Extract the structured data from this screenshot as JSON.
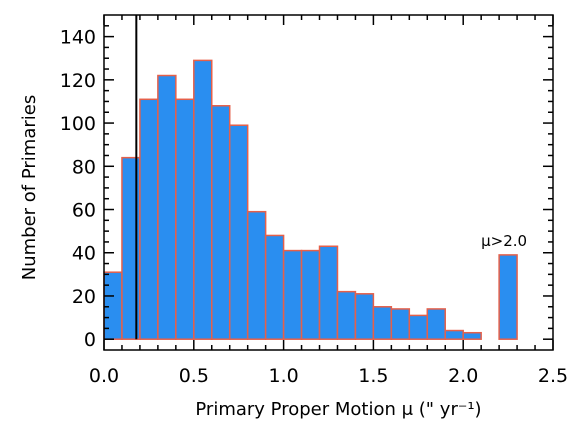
{
  "chart_data": {
    "type": "bar",
    "bin_width": 0.1,
    "bin_starts": [
      0.0,
      0.1,
      0.2,
      0.3,
      0.4,
      0.5,
      0.6,
      0.7,
      0.8,
      0.9,
      1.0,
      1.1,
      1.2,
      1.3,
      1.4,
      1.5,
      1.6,
      1.7,
      1.8,
      1.9,
      2.0,
      2.1
    ],
    "values": [
      31,
      84,
      111,
      122,
      111,
      129,
      108,
      99,
      59,
      48,
      41,
      41,
      43,
      22,
      21,
      15,
      14,
      11,
      14,
      4,
      3,
      0
    ],
    "extra_bin": {
      "start": 2.2,
      "value": 39,
      "label": "μ>2.0"
    },
    "xlabel": "Primary Proper Motion μ (\" yr⁻¹)",
    "ylabel": "Number of Primaries",
    "xlim": [
      0.0,
      2.5
    ],
    "ylim": [
      -5,
      150
    ],
    "x_ticks": [
      "0.0",
      "0.5",
      "1.0",
      "1.5",
      "2.0",
      "2.5"
    ],
    "y_ticks": [
      "0",
      "20",
      "40",
      "60",
      "80",
      "100",
      "120",
      "140"
    ],
    "reference_line_x": 0.18,
    "bar_fill": "#2a8ef0",
    "bar_edge": "#e5604a",
    "grid": false,
    "legend": "none"
  }
}
